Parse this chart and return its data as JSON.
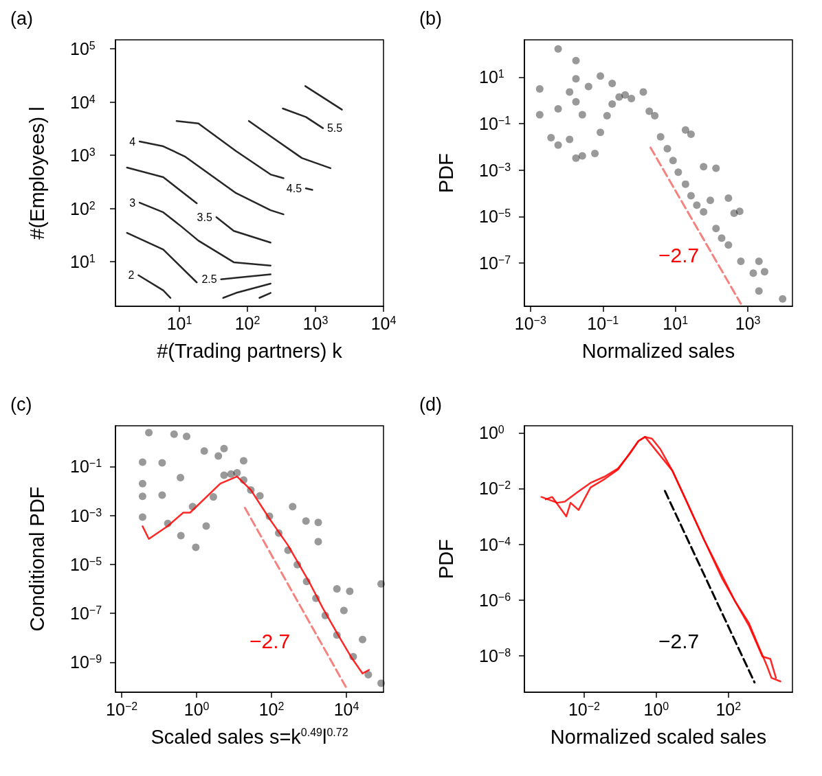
{
  "chart_data": [
    {
      "title": "(a)",
      "type": "line",
      "xlabel": "#(Trading partners) k",
      "ylabel": "#(Employees) l",
      "log": "xy",
      "marker": "none",
      "xlim": [
        1.15,
        10000
      ],
      "ylim": [
        1.46,
        148000
      ],
      "xticks": [
        {
          "value": 10,
          "label": "10$^{1}$"
        },
        {
          "value": 100,
          "label": "10$^{2}$"
        },
        {
          "value": 1000,
          "label": "10$^{3}$"
        },
        {
          "value": 10000,
          "label": "10$^{4}$"
        }
      ],
      "yticks": [
        {
          "value": 10,
          "label": "10$^{1}$"
        },
        {
          "value": 100,
          "label": "10$^{2}$"
        },
        {
          "value": 1000,
          "label": "10$^{3}$"
        },
        {
          "value": 10000,
          "label": "10$^{4}$"
        },
        {
          "value": 100000,
          "label": "10$^{5}$"
        }
      ],
      "series": [
        {
          "name": "2",
          "color": "#000000",
          "x": [
            2.5,
            5.8,
            7.4
          ],
          "values": [
            5.6,
            2.9,
            2.1
          ]
        },
        {
          "name": "2.5",
          "color": "#000000",
          "x": [
            1.7,
            5.8,
            18,
            null,
            41,
            68,
            219
          ],
          "values": [
            35,
            17,
            4.1,
            null,
            4.7,
            5.0,
            5.8
          ]
        },
        {
          "color": "#000000",
          "x": [
            44,
            68,
            219
          ],
          "values": [
            2.1,
            2.6,
            3.9
          ]
        },
        {
          "color": "#000000",
          "x": [
            150,
            219
          ],
          "values": [
            2.1,
            2.6
          ]
        },
        {
          "name": "3",
          "color": "#000000",
          "x": [
            2.6,
            5.8,
            10.7,
            19,
            63,
            219
          ],
          "values": [
            129,
            85,
            46,
            25,
            9.8,
            8.5
          ]
        },
        {
          "name": "3.5",
          "color": "#000000",
          "x": [
            1.7,
            5.8,
            18,
            null,
            35,
            63,
            219
          ],
          "values": [
            589,
            389,
            126,
            null,
            69,
            38,
            23
          ]
        },
        {
          "name": "4",
          "color": "#000000",
          "x": [
            2.6,
            5.8,
            12,
            68,
            219,
            339
          ],
          "values": [
            1820,
            1480,
            955,
            195,
            93,
            78
          ]
        },
        {
          "name": "4.5",
          "color": "#000000",
          "x": [
            9.1,
            19,
            68,
            219,
            339,
            null,
            724,
            900
          ],
          "values": [
            4420,
            3980,
            1200,
            437,
            372,
            null,
            240,
            225
          ]
        },
        {
          "color": "#000000",
          "x": [
            105,
            229,
            631,
            1660
          ],
          "values": [
            4420,
            2190,
            891,
            575
          ]
        },
        {
          "name": "5.5",
          "color": "#000000",
          "x": [
            1290,
            724,
            331
          ],
          "values": [
            3240,
            5250,
            7590
          ]
        },
        {
          "color": "#000000",
          "x": [
            708,
            2450
          ],
          "values": [
            20000,
            7240
          ]
        }
      ]
    },
    {
      "title": "(b)",
      "type": "scatter",
      "xlabel": "Normalized sales",
      "ylabel": "PDF",
      "log": "xy",
      "marker": "circle",
      "xlim": [
        0.00068,
        17000
      ],
      "ylim": [
        1.4e-09,
        400
      ],
      "xticks": [
        {
          "value": 0.001,
          "label": "10$^{−3}$"
        },
        {
          "value": 0.1,
          "label": "10$^{−1}$"
        },
        {
          "value": 10,
          "label": "10$^{1}$"
        },
        {
          "value": 1000,
          "label": "10$^{3}$"
        }
      ],
      "yticks": [
        {
          "value": 10,
          "label": "10$^{1}$"
        },
        {
          "value": 0.1,
          "label": "10$^{−1}$"
        },
        {
          "value": 0.001,
          "label": "10$^{−3}$"
        },
        {
          "value": 1e-05,
          "label": "10$^{−5}$"
        },
        {
          "value": 1e-07,
          "label": "10$^{−7}$"
        }
      ],
      "series": [
        {
          "color": "#000000",
          "x": [
            0.0018,
            0.0018,
            0.0058,
            0.0058,
            0.0037,
            0.0058,
            0.018,
            0.018,
            0.012,
            0.018,
            0.012,
            0.018,
            0.027,
            0.04,
            0.027,
            0.06,
            0.085,
            0.085,
            0.18,
            0.13,
            0.18,
            0.28,
            0.41,
            0.61,
            1.3,
            1.9,
            2.7,
            3.9,
            6.0,
            8.6,
            12,
            19,
            27,
            19,
            27,
            39,
            60,
            132,
            60,
            92,
            132,
            291,
            189,
            416,
            596,
            291,
            640,
            1410,
            2020,
            2890,
            2020,
            9100
          ],
          "values": [
            3.1,
            0.24,
            163,
            0.43,
            0.025,
            0.012,
            51,
            8.5,
            2.3,
            0.87,
            0.021,
            0.0033,
            0.0041,
            3.9,
            0.24,
            0.0052,
            11,
            0.042,
            5.3,
            0.22,
            0.69,
            1.4,
            1.7,
            1.2,
            2.3,
            0.34,
            0.22,
            0.027,
            0.0083,
            0.0026,
            0.00081,
            0.053,
            0.035,
            0.00025,
            7.9e-05,
            3.1e-05,
            0.0014,
            0.0012,
            1.6e-05,
            5e-05,
            3.1e-06,
            6.3e-05,
            1.2e-06,
            1.4e-05,
            1.7e-05,
            6e-07,
            1.2e-07,
            3.7e-08,
            1.2e-07,
            4.3e-08,
            6.4e-09,
            2.9e-09
          ]
        },
        {
          "type": "line",
          "line_style": "dashed",
          "marker": "none",
          "color": "#f4827e",
          "x": [
            2.06,
            640
          ],
          "values": [
            0.0093,
            1.8e-09
          ]
        }
      ],
      "annotations": [
        "−2.7"
      ]
    },
    {
      "title": "(c)",
      "type": "scatter",
      "xlabel": "Scaled sales s=k$^{0.49}$l$^{0.72}$",
      "ylabel": "Conditional PDF",
      "log": "xy",
      "marker": "circle",
      "xlim": [
        0.0068,
        98000
      ],
      "ylim": [
        6e-11,
        4.6
      ],
      "xticks": [
        {
          "value": 0.01,
          "label": "10$^{−2}$"
        },
        {
          "value": 1,
          "label": "10$^{0}$"
        },
        {
          "value": 100,
          "label": "10$^{2}$"
        },
        {
          "value": 10000,
          "label": "10$^{4}$"
        }
      ],
      "yticks": [
        {
          "value": 0.1,
          "label": "10$^{−1}$"
        },
        {
          "value": 0.001,
          "label": "10$^{−3}$"
        },
        {
          "value": 1e-05,
          "label": "10$^{−5}$"
        },
        {
          "value": 1e-07,
          "label": "10$^{−7}$"
        },
        {
          "value": 1e-09,
          "label": "10$^{−9}$"
        }
      ],
      "series": [
        {
          "color": "#000000",
          "x": [
            0.053,
            0.036,
            0.036,
            0.036,
            0.036,
            0.12,
            0.12,
            0.25,
            0.37,
            0.54,
            0.17,
            0.38,
            0.95,
            0.78,
            1.8,
            1.6,
            3.8,
            2.8,
            5.4,
            5.4,
            8.3,
            12,
            18,
            18,
            28,
            49,
            88,
            156,
            367,
            276,
            490,
            832,
            1770,
            1770,
            867,
            1540,
            2730,
            5580,
            12300,
            5580,
            15200,
            38500,
            84700,
            84700,
            8570,
            27000
          ],
          "values": [
            2.4,
            0.15,
            0.02,
            0.006,
            0.00086,
            0.14,
            0.0068,
            2.1,
            0.035,
            1.7,
            0.00047,
            0.00015,
            5e-05,
            0.0023,
            0.00037,
            0.43,
            0.27,
            0.0057,
            0.54,
            0.044,
            0.049,
            0.055,
            0.17,
            0.028,
            0.011,
            0.0063,
            0.00092,
            0.00019,
            0.0023,
            3.8e-05,
            9.8e-06,
            0.00059,
            0.00052,
            8.5e-05,
            2e-06,
            4.1e-07,
            8.2e-08,
            1e-06,
            8e-07,
            1.3e-08,
            1.7e-09,
            3.1e-10,
            1.6e-06,
            1.4e-10,
            1.3e-07,
            8.5e-09
          ]
        },
        {
          "type": "line",
          "marker": "none",
          "color": "#ff0000",
          "x": [
            0.036,
            0.053,
            0.17,
            0.44,
            0.67,
            4.3,
            12,
            28,
            88,
            276,
            1000,
            2360,
            6440,
            13200,
            27000,
            40300
          ],
          "values": [
            0.00036,
            0.00011,
            0.00037,
            0.0013,
            0.0013,
            0.02,
            0.039,
            0.011,
            0.00074,
            6e-05,
            2e-06,
            1.6e-07,
            1.1e-08,
            1.7e-09,
            3.5e-10,
            4.9e-10
          ]
        },
        {
          "type": "line",
          "line_style": "dashed",
          "marker": "none",
          "color": "#f4827e",
          "x": [
            19.5,
            9620
          ],
          "values": [
            0.00205,
            1e-10
          ]
        }
      ],
      "annotations": [
        "−2.7"
      ]
    },
    {
      "title": "(d)",
      "type": "line",
      "xlabel": "Normalized scaled sales",
      "ylabel": "PDF",
      "log": "xy",
      "marker": "none",
      "xlim": [
        0.00022,
        6000
      ],
      "ylim": [
        4.9e-10,
        1.8
      ],
      "xticks": [
        {
          "value": 0.01,
          "label": "10$^{−2}$"
        },
        {
          "value": 1,
          "label": "10$^{0}$"
        },
        {
          "value": 100,
          "label": "10$^{2}$"
        }
      ],
      "yticks": [
        {
          "value": 1,
          "label": "10$^{0}$"
        },
        {
          "value": 0.01,
          "label": "10$^{−2}$"
        },
        {
          "value": 0.0001,
          "label": "10$^{−4}$"
        },
        {
          "value": 1e-06,
          "label": "10$^{−6}$"
        },
        {
          "value": 1e-08,
          "label": "10$^{−8}$"
        }
      ],
      "series": [
        {
          "color": "#ff0000",
          "x": [
            0.00065,
            0.0018,
            0.0029,
            0.0065,
            0.015,
            0.037,
            0.087,
            0.18,
            0.32,
            0.49,
            0.76,
            1.3,
            2.8,
            6.6,
            21,
            66,
            156,
            372,
            661,
            1180,
            1570,
            2790
          ],
          "values": [
            0.005,
            0.0031,
            0.0034,
            0.0074,
            0.016,
            0.027,
            0.053,
            0.17,
            0.51,
            0.72,
            0.62,
            0.26,
            0.044,
            0.0041,
            0.00015,
            6.2e-06,
            8.7e-07,
            1.5e-07,
            2.5e-08,
            4.3e-09,
            1.6e-09,
            1.2e-09
          ]
        },
        {
          "color": "#ff0000",
          "x": [
            0.00086,
            0.0013,
            0.0032,
            0.0042,
            0.007,
            0.015,
            0.037,
            0.087,
            0.32,
            0.49,
            2.8,
            21,
            156,
            372,
            881,
            1460,
            2090
          ],
          "values": [
            0.0041,
            0.005,
            0.001,
            0.0031,
            0.0017,
            0.011,
            0.022,
            0.048,
            0.51,
            0.72,
            0.044,
            0.00015,
            8.7e-07,
            1.2e-07,
            9.4e-09,
            7.7e-09,
            1.6e-09
          ]
        },
        {
          "type": "line",
          "line_style": "dashed",
          "color": "#000000",
          "x": [
            1.74,
            532
          ],
          "values": [
            0.0082,
            1.1e-09
          ]
        }
      ],
      "annotations": [
        "−2.7"
      ]
    }
  ]
}
